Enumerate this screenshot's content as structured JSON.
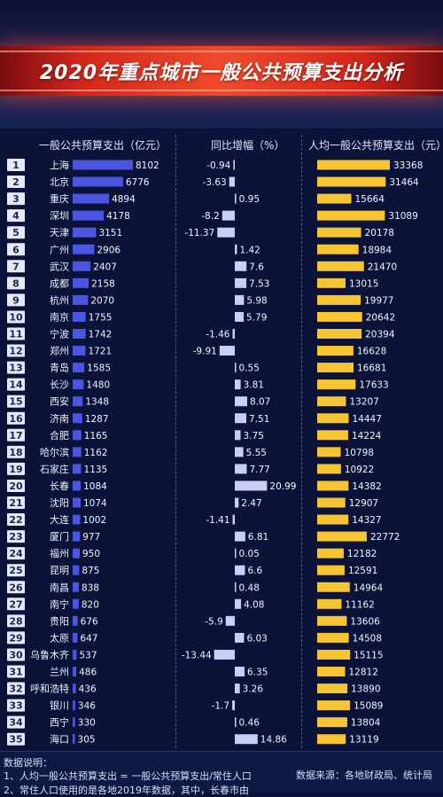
{
  "title": "2020年重点城市一般公共预算支出分析",
  "headers": {
    "spending": "一般公共预算支出（亿元）",
    "growth": "同比增幅（%）",
    "per_capita": "人均一般公共预算支出（元）"
  },
  "colors": {
    "spending_bar": "#4a55e0",
    "growth_bar": "#c9cdf8",
    "per_capita_bar": "#f7c531",
    "rank_box": "#e6e8f5",
    "title_bar": "#e0321f"
  },
  "chart_data": {
    "type": "bar",
    "categories": [
      "上海",
      "北京",
      "重庆",
      "深圳",
      "天津",
      "广州",
      "武汉",
      "成都",
      "杭州",
      "南京",
      "宁波",
      "郑州",
      "青岛",
      "长沙",
      "西安",
      "济南",
      "合肥",
      "哈尔滨",
      "石家庄",
      "长春",
      "沈阳",
      "大连",
      "厦门",
      "福州",
      "昆明",
      "南昌",
      "南宁",
      "贵阳",
      "太原",
      "乌鲁木齐",
      "兰州",
      "呼和浩特",
      "银川",
      "西宁",
      "海口"
    ],
    "ranks": [
      "1",
      "2",
      "3",
      "4",
      "5",
      "6",
      "7",
      "8",
      "9",
      "10",
      "11",
      "12",
      "13",
      "14",
      "15",
      "16",
      "17",
      "18",
      "19",
      "20",
      "21",
      "22",
      "23",
      "24",
      "25",
      "26",
      "27",
      "28",
      "29",
      "30",
      "31",
      "32",
      "33",
      "34",
      "35"
    ],
    "series": [
      {
        "name": "一般公共预算支出（亿元）",
        "values": [
          8102,
          6776,
          4894,
          4178,
          3151,
          2906,
          2407,
          2158,
          2070,
          1755,
          1742,
          1721,
          1585,
          1480,
          1348,
          1287,
          1165,
          1162,
          1135,
          1084,
          1074,
          1002,
          977,
          950,
          875,
          838,
          820,
          676,
          647,
          537,
          486,
          436,
          346,
          330,
          305
        ]
      },
      {
        "name": "同比增幅（%）",
        "values": [
          -0.94,
          -3.63,
          0.95,
          -8.2,
          -11.37,
          1.42,
          7.6,
          7.53,
          5.98,
          5.79,
          -1.46,
          -9.91,
          0.55,
          3.81,
          8.07,
          7.51,
          3.75,
          5.55,
          7.77,
          20.99,
          2.47,
          -1.41,
          6.81,
          0.05,
          6.6,
          0.48,
          4.08,
          -5.9,
          6.03,
          -13.44,
          6.35,
          3.26,
          -1.7,
          0.46,
          14.86
        ]
      },
      {
        "name": "人均一般公共预算支出（元）",
        "values": [
          33368,
          31464,
          15664,
          31089,
          20178,
          18984,
          21470,
          13015,
          19977,
          20642,
          20394,
          16628,
          16681,
          17633,
          13207,
          14447,
          14224,
          10798,
          10922,
          14382,
          12907,
          14327,
          22772,
          12182,
          12591,
          14964,
          11162,
          13606,
          14508,
          15115,
          12812,
          13890,
          15089,
          13804,
          13119
        ]
      }
    ]
  },
  "footer": {
    "heading": "数据说明：",
    "note1": "1、人均一般公共预算支出 = 一般公共预算支出/常住人口",
    "note2": "2、常住人口使用的是各地2019年数据，其中，长春市由",
    "source": "数据来源：各地财政局、统计局"
  }
}
